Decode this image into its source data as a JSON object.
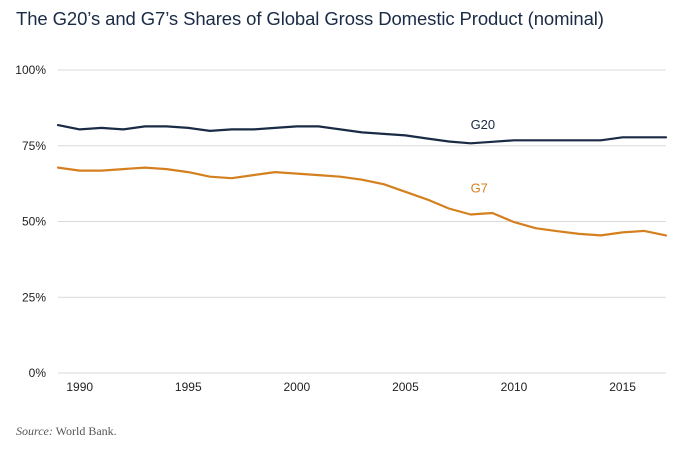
{
  "title": "The G20’s and G7’s Shares of Global Gross Domestic Product (nominal)",
  "source": {
    "label": "Source:",
    "text": " World Bank."
  },
  "chart_data": {
    "type": "line",
    "title": "The G20’s and G7’s Shares of Global Gross Domestic Product (nominal)",
    "xlabel": "",
    "ylabel": "",
    "xlim": [
      1989,
      2017
    ],
    "ylim": [
      0,
      100
    ],
    "y_ticks": [
      0,
      25,
      50,
      75,
      100
    ],
    "y_tick_labels": [
      "0%",
      "25%",
      "50%",
      "75%",
      "100%"
    ],
    "x_ticks": [
      1990,
      1995,
      2000,
      2005,
      2010,
      2015
    ],
    "x_tick_labels": [
      "1990",
      "1995",
      "2000",
      "2005",
      "2010",
      "2015"
    ],
    "grid": "horizontal",
    "x": [
      1989,
      1990,
      1991,
      1992,
      1993,
      1994,
      1995,
      1996,
      1997,
      1998,
      1999,
      2000,
      2001,
      2002,
      2003,
      2004,
      2005,
      2006,
      2007,
      2008,
      2009,
      2010,
      2011,
      2012,
      2013,
      2014,
      2015,
      2016,
      2017
    ],
    "series": [
      {
        "name": "G20",
        "color": "#1a2b45",
        "label_at": [
          2008,
          80.5
        ],
        "values": [
          81.8,
          80.4,
          80.9,
          80.4,
          81.4,
          81.4,
          80.9,
          79.9,
          80.4,
          80.4,
          80.9,
          81.4,
          81.4,
          80.4,
          79.4,
          78.9,
          78.4,
          77.4,
          76.4,
          75.8,
          76.3,
          76.8,
          76.8,
          76.8,
          76.8,
          76.8,
          77.8,
          77.8,
          77.8
        ]
      },
      {
        "name": "G7",
        "color": "#d4801f",
        "label_at": [
          2008,
          59.5
        ],
        "values": [
          67.8,
          66.8,
          66.8,
          67.3,
          67.8,
          67.3,
          66.3,
          64.8,
          64.3,
          65.3,
          66.3,
          65.8,
          65.3,
          64.8,
          63.8,
          62.3,
          59.8,
          57.3,
          54.3,
          52.3,
          52.8,
          49.8,
          47.8,
          46.8,
          45.9,
          45.4,
          46.4,
          46.9,
          45.4
        ]
      }
    ],
    "colors": {
      "grid": "#d9d9d9",
      "axis_text": "#222222",
      "title": "#1a2b45"
    }
  }
}
